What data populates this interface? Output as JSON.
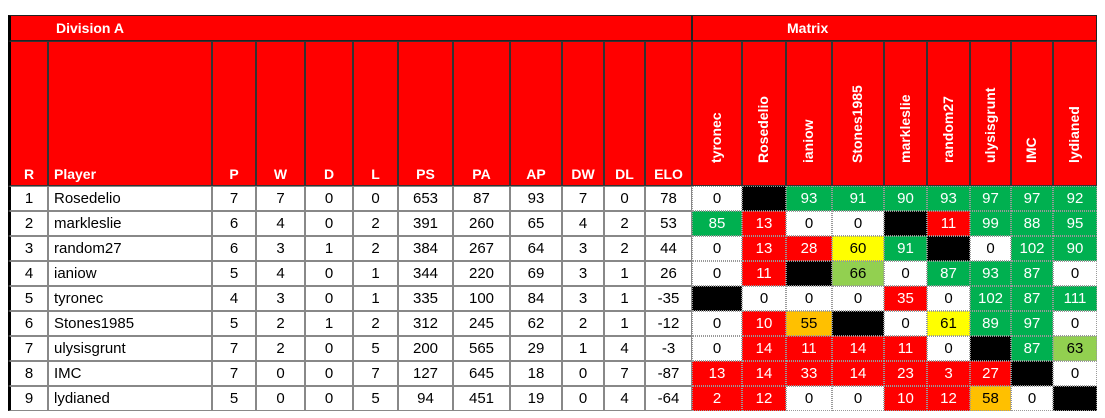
{
  "header": {
    "title": "Division A",
    "matrix_title": "Matrix"
  },
  "table": {
    "columns": [
      "R",
      "Player",
      "P",
      "W",
      "D",
      "L",
      "PS",
      "PA",
      "AP",
      "DW",
      "DL",
      "ELO"
    ],
    "rows": [
      [
        1,
        "Rosedelio",
        7,
        7,
        0,
        0,
        653,
        87,
        93,
        7,
        0,
        78
      ],
      [
        2,
        "markleslie",
        6,
        4,
        0,
        2,
        391,
        260,
        65,
        4,
        2,
        53
      ],
      [
        3,
        "random27",
        6,
        3,
        1,
        2,
        384,
        267,
        64,
        3,
        2,
        44
      ],
      [
        4,
        "ianiow",
        5,
        4,
        0,
        1,
        344,
        220,
        69,
        3,
        1,
        26
      ],
      [
        5,
        "tyronec",
        4,
        3,
        0,
        1,
        335,
        100,
        84,
        3,
        1,
        -35
      ],
      [
        6,
        "Stones1985",
        5,
        2,
        1,
        2,
        312,
        245,
        62,
        2,
        1,
        -12
      ],
      [
        7,
        "ulysisgrunt",
        7,
        2,
        0,
        5,
        200,
        565,
        29,
        1,
        4,
        -3
      ],
      [
        8,
        "IMC",
        7,
        0,
        0,
        7,
        127,
        645,
        18,
        0,
        7,
        -87
      ],
      [
        9,
        "lydianed",
        5,
        0,
        0,
        5,
        94,
        451,
        19,
        0,
        4,
        -64
      ]
    ]
  },
  "matrix": {
    "columns": [
      "tyronec",
      "Rosedelio",
      "ianiow",
      "Stones1985",
      "markleslie",
      "random27",
      "ulysisgrunt",
      "IMC",
      "lydianed"
    ],
    "rows": [
      [
        0,
        null,
        93,
        91,
        90,
        93,
        97,
        97,
        92
      ],
      [
        85,
        13,
        0,
        0,
        null,
        11,
        99,
        88,
        95
      ],
      [
        0,
        13,
        28,
        60,
        91,
        null,
        0,
        102,
        90
      ],
      [
        0,
        11,
        null,
        66,
        0,
        87,
        93,
        87,
        0
      ],
      [
        null,
        0,
        0,
        0,
        35,
        0,
        102,
        87,
        111
      ],
      [
        0,
        10,
        55,
        null,
        0,
        61,
        89,
        97,
        0
      ],
      [
        0,
        14,
        11,
        14,
        11,
        0,
        null,
        87,
        63
      ],
      [
        13,
        14,
        33,
        14,
        23,
        3,
        27,
        null,
        0
      ],
      [
        2,
        12,
        0,
        0,
        10,
        12,
        58,
        0,
        null
      ]
    ],
    "colors": [
      [
        "#ffffff",
        "#000000",
        "#00b050",
        "#00b050",
        "#00b050",
        "#00b050",
        "#00b050",
        "#00b050",
        "#00b050"
      ],
      [
        "#00b050",
        "#ff0000",
        "#ffffff",
        "#ffffff",
        "#000000",
        "#ff0000",
        "#00b050",
        "#00b050",
        "#00b050"
      ],
      [
        "#ffffff",
        "#ff0000",
        "#ff0000",
        "#ffff00",
        "#00b050",
        "#000000",
        "#ffffff",
        "#00b050",
        "#00b050"
      ],
      [
        "#ffffff",
        "#ff0000",
        "#000000",
        "#92d050",
        "#ffffff",
        "#00b050",
        "#00b050",
        "#00b050",
        "#ffffff"
      ],
      [
        "#000000",
        "#ffffff",
        "#ffffff",
        "#ffffff",
        "#ff0000",
        "#ffffff",
        "#00b050",
        "#00b050",
        "#00b050"
      ],
      [
        "#ffffff",
        "#ff0000",
        "#ffc000",
        "#000000",
        "#ffffff",
        "#ffff00",
        "#00b050",
        "#00b050",
        "#ffffff"
      ],
      [
        "#ffffff",
        "#ff0000",
        "#ff0000",
        "#ff0000",
        "#ff0000",
        "#ffffff",
        "#000000",
        "#00b050",
        "#92d050"
      ],
      [
        "#ff0000",
        "#ff0000",
        "#ff0000",
        "#ff0000",
        "#ff0000",
        "#ff0000",
        "#ff0000",
        "#000000",
        "#ffffff"
      ],
      [
        "#ff0000",
        "#ff0000",
        "#ffffff",
        "#ffffff",
        "#ff0000",
        "#ff0000",
        "#ffc000",
        "#ffffff",
        "#000000"
      ]
    ]
  }
}
